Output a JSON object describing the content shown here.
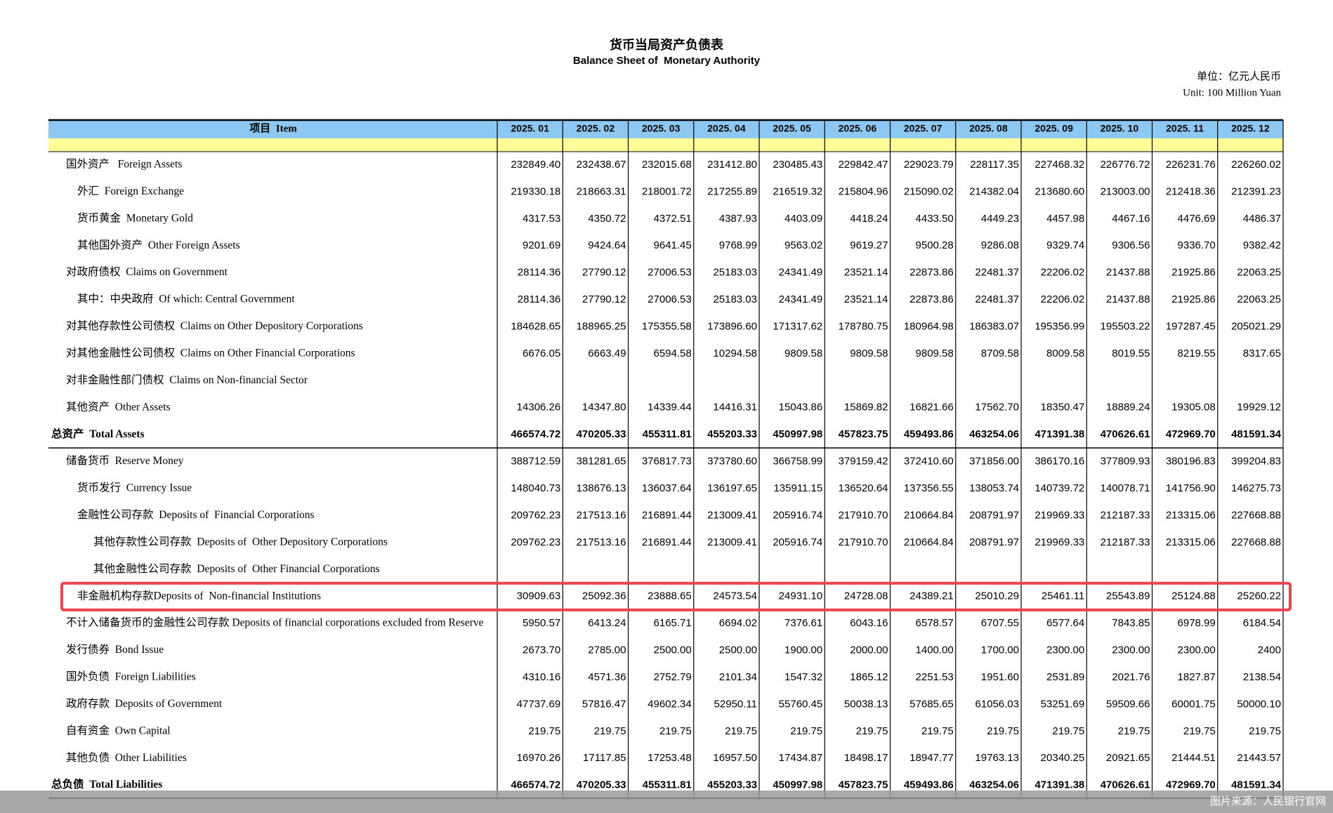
{
  "header": {
    "title": "货币当局资产负债表",
    "subtitle": "Balance Sheet of  Monetary Authority",
    "unit_zh": "单位：亿元人民币",
    "unit_en": "Unit: 100 Million Yuan"
  },
  "table": {
    "item_header": "项目  Item",
    "columns": [
      "2025. 01",
      "2025. 02",
      "2025. 03",
      "2025. 04",
      "2025. 05",
      "2025. 06",
      "2025. 07",
      "2025. 08",
      "2025. 09",
      "2025. 10",
      "2025. 11",
      "2025. 12"
    ],
    "rows": [
      {
        "label": "国外资产   Foreign Assets",
        "values": [
          "232849.40",
          "232438.67",
          "232015.68",
          "231412.80",
          "230485.43",
          "229842.47",
          "229023.79",
          "228117.35",
          "227468.32",
          "226776.72",
          "226231.76",
          "226260.02"
        ]
      },
      {
        "label": "外汇  Foreign Exchange",
        "values": [
          "219330.18",
          "218663.31",
          "218001.72",
          "217255.89",
          "216519.32",
          "215804.96",
          "215090.02",
          "214382.04",
          "213680.60",
          "213003.00",
          "212418.36",
          "212391.23"
        ]
      },
      {
        "label": "货币黄金  Monetary Gold",
        "values": [
          "4317.53",
          "4350.72",
          "4372.51",
          "4387.93",
          "4403.09",
          "4418.24",
          "4433.50",
          "4449.23",
          "4457.98",
          "4467.16",
          "4476.69",
          "4486.37"
        ]
      },
      {
        "label": "其他国外资产  Other Foreign Assets",
        "values": [
          "9201.69",
          "9424.64",
          "9641.45",
          "9768.99",
          "9563.02",
          "9619.27",
          "9500.28",
          "9286.08",
          "9329.74",
          "9306.56",
          "9336.70",
          "9382.42"
        ]
      },
      {
        "label": "对政府债权  Claims on Government",
        "values": [
          "28114.36",
          "27790.12",
          "27006.53",
          "25183.03",
          "24341.49",
          "23521.14",
          "22873.86",
          "22481.37",
          "22206.02",
          "21437.88",
          "21925.86",
          "22063.25"
        ]
      },
      {
        "label": "其中：中央政府  Of which: Central Government",
        "values": [
          "28114.36",
          "27790.12",
          "27006.53",
          "25183.03",
          "24341.49",
          "23521.14",
          "22873.86",
          "22481.37",
          "22206.02",
          "21437.88",
          "21925.86",
          "22063.25"
        ]
      },
      {
        "label": "对其他存款性公司债权  Claims on Other Depository Corporations",
        "values": [
          "184628.65",
          "188965.25",
          "175355.58",
          "173896.60",
          "171317.62",
          "178780.75",
          "180964.98",
          "186383.07",
          "195356.99",
          "195503.22",
          "197287.45",
          "205021.29"
        ]
      },
      {
        "label": "对其他金融性公司债权  Claims on Other Financial Corporations",
        "values": [
          "6676.05",
          "6663.49",
          "6594.58",
          "10294.58",
          "9809.58",
          "9809.58",
          "9809.58",
          "8709.58",
          "8009.58",
          "8019.55",
          "8219.55",
          "8317.65"
        ]
      },
      {
        "label": "对非金融性部门债权  Claims on Non-financial Sector",
        "values": [
          null,
          null,
          null,
          null,
          null,
          null,
          null,
          null,
          null,
          null,
          null,
          null
        ]
      },
      {
        "label": "其他资产  Other Assets",
        "values": [
          "14306.26",
          "14347.80",
          "14339.44",
          "14416.31",
          "15043.86",
          "15869.82",
          "16821.66",
          "17562.70",
          "18350.47",
          "18889.24",
          "19305.08",
          "19929.12"
        ]
      },
      {
        "label": "总资产  Total Assets",
        "values": [
          "466574.72",
          "470205.33",
          "455311.81",
          "455203.33",
          "450997.98",
          "457823.75",
          "459493.86",
          "463254.06",
          "471391.38",
          "470626.61",
          "472969.70",
          "481591.34"
        ]
      },
      {
        "label": "储备货币  Reserve Money",
        "values": [
          "388712.59",
          "381281.65",
          "376817.73",
          "373780.60",
          "366758.99",
          "379159.42",
          "372410.60",
          "371856.00",
          "386170.16",
          "377809.93",
          "380196.83",
          "399204.83"
        ]
      },
      {
        "label": "货币发行  Currency Issue",
        "values": [
          "148040.73",
          "138676.13",
          "136037.64",
          "136197.65",
          "135911.15",
          "136520.64",
          "137356.55",
          "138053.74",
          "140739.72",
          "140078.71",
          "141756.90",
          "146275.73"
        ]
      },
      {
        "label": "金融性公司存款  Deposits of  Financial Corporations",
        "values": [
          "209762.23",
          "217513.16",
          "216891.44",
          "213009.41",
          "205916.74",
          "217910.70",
          "210664.84",
          "208791.97",
          "219969.33",
          "212187.33",
          "213315.06",
          "227668.88"
        ]
      },
      {
        "label": "其他存款性公司存款  Deposits of  Other Depository Corporations",
        "values": [
          "209762.23",
          "217513.16",
          "216891.44",
          "213009.41",
          "205916.74",
          "217910.70",
          "210664.84",
          "208791.97",
          "219969.33",
          "212187.33",
          "213315.06",
          "227668.88"
        ]
      },
      {
        "label": "其他金融性公司存款  Deposits of  Other Financial Corporations",
        "values": [
          null,
          null,
          null,
          null,
          null,
          null,
          null,
          null,
          null,
          null,
          null,
          null
        ]
      },
      {
        "label": "非金融机构存款Deposits of  Non-financial Institutions",
        "values": [
          "30909.63",
          "25092.36",
          "23888.65",
          "24573.54",
          "24931.10",
          "24728.08",
          "24389.21",
          "25010.29",
          "25461.11",
          "25543.89",
          "25124.88",
          "25260.22"
        ]
      },
      {
        "label": "不计入储备货币的金融性公司存款 Deposits of financial corporations excluded from Reserve",
        "values": [
          "5950.57",
          "6413.24",
          "6165.71",
          "6694.02",
          "7376.61",
          "6043.16",
          "6578.57",
          "6707.55",
          "6577.64",
          "7843.85",
          "6978.99",
          "6184.54"
        ]
      },
      {
        "label": "发行债券  Bond Issue",
        "values": [
          "2673.70",
          "2785.00",
          "2500.00",
          "2500.00",
          "1900.00",
          "2000.00",
          "1400.00",
          "1700.00",
          "2300.00",
          "2300.00",
          "2300.00",
          "2400"
        ]
      },
      {
        "label": "国外负债  Foreign Liabilities",
        "values": [
          "4310.16",
          "4571.36",
          "2752.79",
          "2101.34",
          "1547.32",
          "1865.12",
          "2251.53",
          "1951.60",
          "2531.89",
          "2021.76",
          "1827.87",
          "2138.54"
        ]
      },
      {
        "label": "政府存款  Deposits of Government",
        "values": [
          "47737.69",
          "57816.47",
          "49602.34",
          "52950.11",
          "55760.45",
          "50038.13",
          "57685.65",
          "61056.03",
          "53251.69",
          "59509.66",
          "60001.75",
          "50000.10"
        ]
      },
      {
        "label": "自有资金  Own Capital",
        "values": [
          "219.75",
          "219.75",
          "219.75",
          "219.75",
          "219.75",
          "219.75",
          "219.75",
          "219.75",
          "219.75",
          "219.75",
          "219.75",
          "219.75"
        ]
      },
      {
        "label": "其他负债  Other Liabilities",
        "values": [
          "16970.26",
          "17117.85",
          "17253.48",
          "16957.50",
          "17434.87",
          "18498.17",
          "18947.77",
          "19763.13",
          "20340.25",
          "20921.65",
          "21444.51",
          "21443.57"
        ]
      },
      {
        "label": "总负债  Total Liabilities",
        "values": [
          "466574.72",
          "470205.33",
          "455311.81",
          "455203.33",
          "450997.98",
          "457823.75",
          "459493.86",
          "463254.06",
          "471391.38",
          "470626.61",
          "472969.70",
          "481591.34"
        ]
      }
    ]
  },
  "footer": {
    "source": "图片来源：人民银行官网"
  }
}
